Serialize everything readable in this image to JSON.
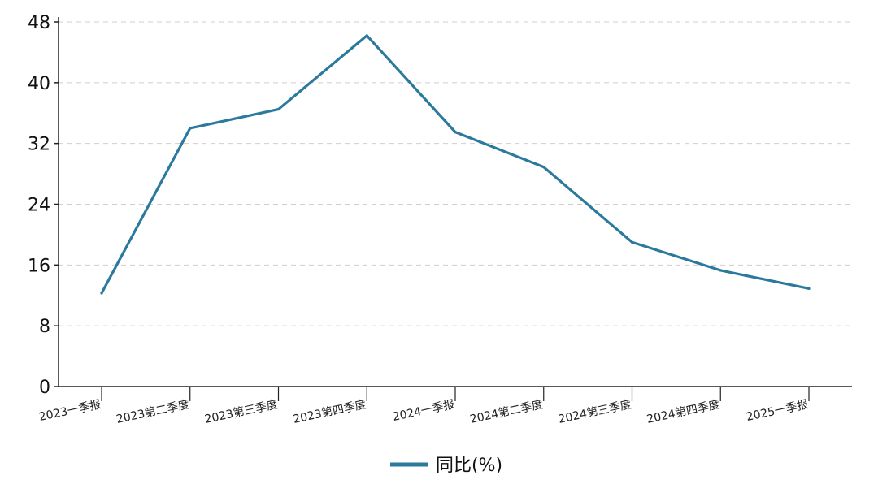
{
  "chart_data": {
    "type": "line",
    "categories": [
      "2023一季报",
      "2023第二季度",
      "2023第三季度",
      "2023第四季度",
      "2024一季报",
      "2024第二季度",
      "2024第三季度",
      "2024第四季度",
      "2025一季报"
    ],
    "series": [
      {
        "name": "同比(%)",
        "values": [
          12.3,
          34.0,
          36.5,
          46.2,
          33.5,
          28.9,
          19.0,
          15.3,
          12.9
        ],
        "color": "#2b7a9e"
      }
    ],
    "ylim": [
      0,
      48
    ],
    "yticks": [
      "0",
      "8",
      "16",
      "24",
      "32",
      "40",
      "48"
    ],
    "grid": true,
    "legend": "bottom-center"
  }
}
